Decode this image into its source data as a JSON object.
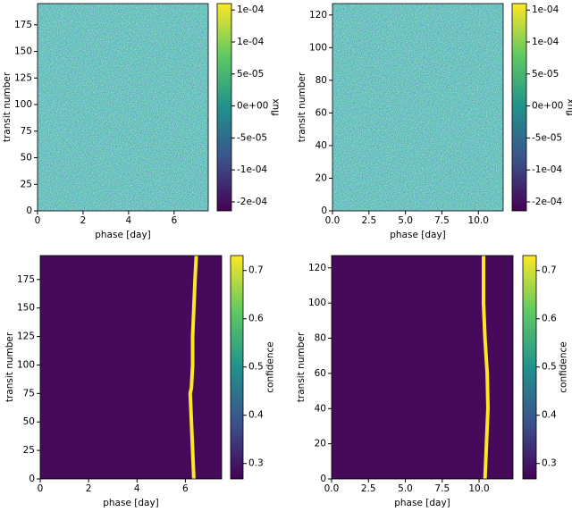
{
  "chart_data": [
    {
      "type": "heatmap",
      "xlabel": "phase [day]",
      "ylabel": "transit number",
      "xlim": [
        0,
        7.5
      ],
      "xticks": [
        0,
        2,
        4,
        6
      ],
      "ylim": [
        0,
        195
      ],
      "yticks": [
        0,
        25,
        50,
        75,
        100,
        125,
        150,
        175
      ],
      "colorbar": {
        "label": "flux",
        "clim": [
          -0.000164,
          0.00016
        ],
        "ticks": [
          {
            "value": -0.00015,
            "label": "-2e-04"
          },
          {
            "value": -0.0001,
            "label": "-1e-04"
          },
          {
            "value": -5e-05,
            "label": "-5e-05"
          },
          {
            "value": 0,
            "label": "0e+00"
          },
          {
            "value": 5e-05,
            "label": "5e-05"
          },
          {
            "value": 0.0001,
            "label": "1e-04"
          },
          {
            "value": 0.00015,
            "label": "1e-04"
          }
        ]
      }
    },
    {
      "type": "heatmap",
      "xlabel": "phase [day]",
      "ylabel": "transit number",
      "xlim": [
        0,
        11.7
      ],
      "xticks": [
        {
          "value": 0,
          "label": "0.0"
        },
        2.5,
        {
          "value": 5,
          "label": "5.0"
        },
        7.5,
        {
          "value": 10,
          "label": "10.0"
        }
      ],
      "ylim": [
        0,
        127
      ],
      "yticks": [
        0,
        20,
        40,
        60,
        80,
        100,
        120
      ],
      "colorbar": {
        "label": "flux",
        "clim": [
          -0.000164,
          0.00016
        ],
        "ticks": [
          {
            "value": -0.00015,
            "label": "-2e-04"
          },
          {
            "value": -0.0001,
            "label": "-1e-04"
          },
          {
            "value": -5e-05,
            "label": "-5e-05"
          },
          {
            "value": 0,
            "label": "0e+00"
          },
          {
            "value": 5e-05,
            "label": "5e-05"
          },
          {
            "value": 0.0001,
            "label": "1e-04"
          },
          {
            "value": 0.00015,
            "label": "1e-04"
          }
        ]
      }
    },
    {
      "type": "heatmap",
      "xlabel": "phase [day]",
      "ylabel": "transit number",
      "xlim": [
        0,
        7.5
      ],
      "xticks": [
        0,
        2,
        4,
        6
      ],
      "ylim": [
        0,
        196
      ],
      "yticks": [
        0,
        25,
        50,
        75,
        100,
        125,
        150,
        175
      ],
      "colorbar": {
        "label": "confidence",
        "clim": [
          0.268,
          0.731
        ],
        "ticks": [
          0.3,
          0.4,
          0.5,
          0.6,
          0.7
        ]
      },
      "track": {
        "color": "#fde725",
        "transit": [
          0,
          25,
          50,
          75,
          80,
          100,
          125,
          150,
          175,
          196
        ],
        "phase": [
          6.35,
          6.3,
          6.25,
          6.2,
          6.25,
          6.3,
          6.3,
          6.35,
          6.4,
          6.45
        ]
      }
    },
    {
      "type": "heatmap",
      "xlabel": "phase [day]",
      "ylabel": "transit number",
      "xlim": [
        0,
        12.3
      ],
      "xticks": [
        {
          "value": 0,
          "label": "0.0"
        },
        2.5,
        {
          "value": 5,
          "label": "5.0"
        },
        7.5,
        {
          "value": 10,
          "label": "10.0"
        }
      ],
      "ylim": [
        0,
        127
      ],
      "yticks": [
        0,
        20,
        40,
        60,
        80,
        100,
        120
      ],
      "colorbar": {
        "label": "confidence",
        "clim": [
          0.268,
          0.731
        ],
        "ticks": [
          0.3,
          0.4,
          0.5,
          0.6,
          0.7
        ]
      },
      "track": {
        "color": "#fde725",
        "transit": [
          0,
          20,
          40,
          60,
          80,
          100,
          127
        ],
        "phase": [
          10.4,
          10.5,
          10.6,
          10.55,
          10.4,
          10.3,
          10.3
        ]
      }
    }
  ]
}
